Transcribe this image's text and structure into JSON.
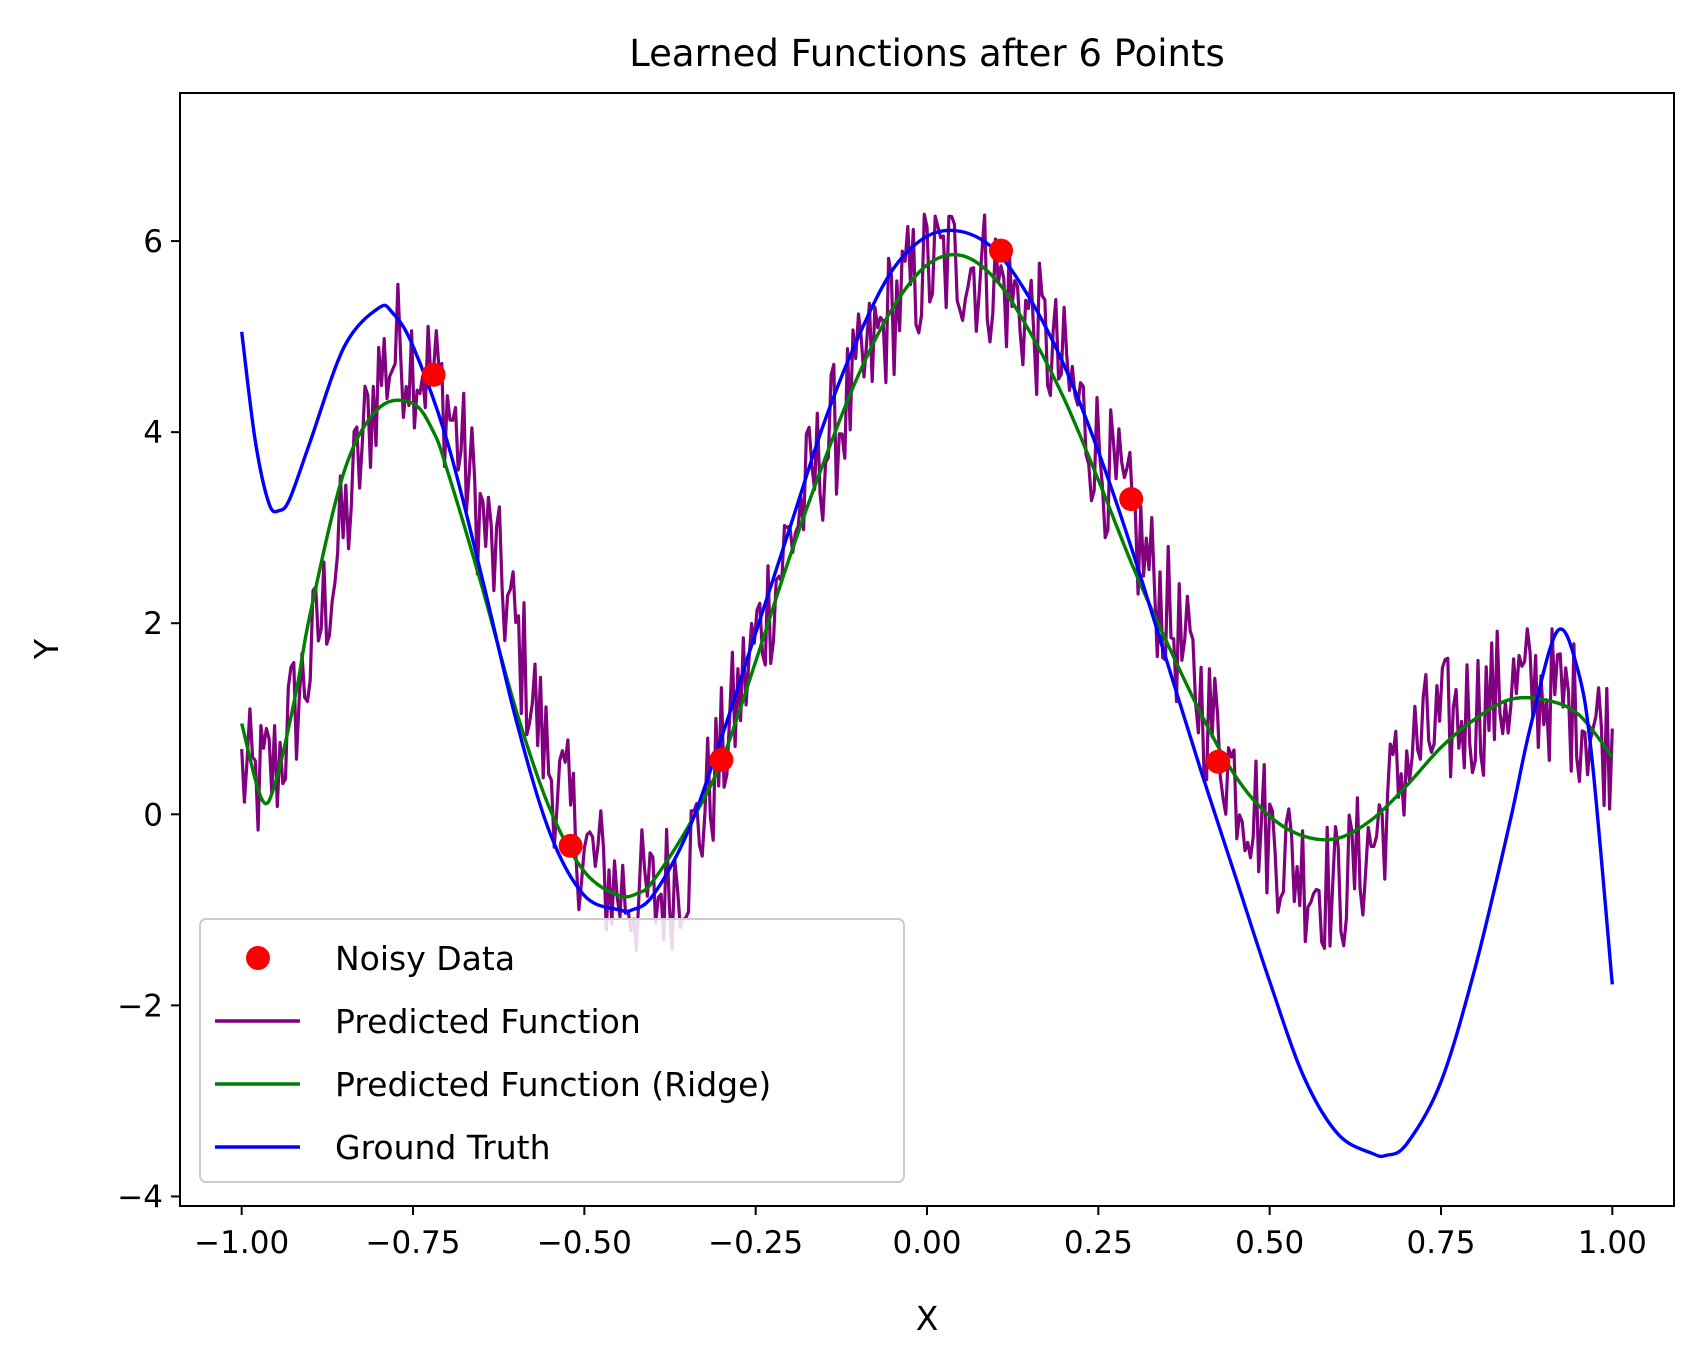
{
  "chart_data": {
    "type": "line",
    "title": "Learned Functions after 6 Points",
    "xlabel": "X",
    "ylabel": "Y",
    "xlim": [
      -1.09,
      1.09
    ],
    "ylim": [
      -4.1,
      7.55
    ],
    "x_ticks": [
      -1.0,
      -0.75,
      -0.5,
      -0.25,
      0.0,
      0.25,
      0.5,
      0.75,
      1.0
    ],
    "x_tick_labels": [
      "−1.00",
      "−0.75",
      "−0.50",
      "−0.25",
      "0.00",
      "0.25",
      "0.50",
      "0.75",
      "1.00"
    ],
    "y_ticks": [
      -4,
      -2,
      0,
      2,
      4,
      6
    ],
    "y_tick_labels": [
      "−4",
      "−2",
      "0",
      "2",
      "4",
      "6"
    ],
    "grid": false,
    "legend_position": "lower-left",
    "colors": {
      "noisy_data": "#ff0000",
      "predicted": "#800080",
      "ridge": "#008000",
      "ground_truth": "#0000ff"
    },
    "series": [
      {
        "name": "Noisy Data",
        "kind": "scatter",
        "x": [
          -0.72,
          -0.52,
          -0.3,
          0.108,
          0.298,
          0.425
        ],
        "y": [
          4.6,
          -0.33,
          0.57,
          5.9,
          3.3,
          0.55
        ]
      },
      {
        "name": "Predicted Function",
        "kind": "noisy-line",
        "x": [
          -1.0,
          -0.98,
          -0.95,
          -0.9,
          -0.85,
          -0.8,
          -0.77,
          -0.75,
          -0.72,
          -0.7,
          -0.65,
          -0.6,
          -0.55,
          -0.5,
          -0.45,
          -0.4,
          -0.35,
          -0.3,
          -0.25,
          -0.2,
          -0.15,
          -0.1,
          -0.05,
          0.0,
          0.05,
          0.1,
          0.15,
          0.2,
          0.25,
          0.3,
          0.35,
          0.4,
          0.45,
          0.5,
          0.55,
          0.6,
          0.65,
          0.7,
          0.75,
          0.8,
          0.85,
          0.9,
          0.95,
          1.0
        ],
        "y": [
          0.45,
          0.3,
          0.5,
          1.6,
          3.0,
          4.6,
          4.9,
          4.8,
          4.6,
          4.3,
          3.1,
          1.9,
          0.5,
          -0.4,
          -0.8,
          -0.9,
          -0.5,
          0.6,
          1.8,
          2.9,
          3.8,
          4.5,
          5.3,
          5.7,
          5.8,
          5.6,
          5.2,
          4.6,
          3.8,
          3.0,
          2.1,
          1.2,
          0.4,
          -0.2,
          -0.6,
          -0.8,
          -0.3,
          0.6,
          0.9,
          1.1,
          1.3,
          1.3,
          1.1,
          0.75
        ]
      },
      {
        "name": "Predicted Function (Ridge)",
        "kind": "line",
        "x": [
          -1.0,
          -0.97,
          -0.95,
          -0.92,
          -0.9,
          -0.85,
          -0.8,
          -0.75,
          -0.72,
          -0.7,
          -0.65,
          -0.6,
          -0.55,
          -0.5,
          -0.45,
          -0.42,
          -0.4,
          -0.35,
          -0.3,
          -0.25,
          -0.2,
          -0.15,
          -0.1,
          -0.05,
          0.0,
          0.05,
          0.1,
          0.15,
          0.2,
          0.25,
          0.3,
          0.35,
          0.4,
          0.45,
          0.5,
          0.55,
          0.6,
          0.65,
          0.7,
          0.75,
          0.8,
          0.85,
          0.9,
          0.95,
          1.0
        ],
        "y": [
          0.95,
          0.15,
          0.35,
          1.3,
          2.1,
          3.6,
          4.25,
          4.3,
          4.0,
          3.6,
          2.4,
          1.1,
          0.05,
          -0.6,
          -0.85,
          -0.82,
          -0.7,
          -0.15,
          0.55,
          1.6,
          2.7,
          3.7,
          4.6,
          5.3,
          5.75,
          5.85,
          5.6,
          5.05,
          4.35,
          3.5,
          2.6,
          1.8,
          1.05,
          0.4,
          -0.02,
          -0.23,
          -0.25,
          -0.05,
          0.3,
          0.7,
          1.0,
          1.2,
          1.2,
          1.05,
          0.6
        ]
      },
      {
        "name": "Ground Truth",
        "kind": "line",
        "x": [
          -1.0,
          -0.98,
          -0.96,
          -0.945,
          -0.93,
          -0.9,
          -0.85,
          -0.8,
          -0.78,
          -0.75,
          -0.7,
          -0.65,
          -0.6,
          -0.55,
          -0.5,
          -0.45,
          -0.43,
          -0.4,
          -0.35,
          -0.3,
          -0.25,
          -0.2,
          -0.15,
          -0.1,
          -0.05,
          0.0,
          0.05,
          0.1,
          0.15,
          0.2,
          0.25,
          0.3,
          0.35,
          0.4,
          0.45,
          0.5,
          0.55,
          0.6,
          0.65,
          0.67,
          0.7,
          0.75,
          0.8,
          0.85,
          0.88,
          0.92,
          0.95,
          0.97,
          1.0
        ],
        "y": [
          5.05,
          3.9,
          3.25,
          3.18,
          3.3,
          3.9,
          4.9,
          5.3,
          5.25,
          4.9,
          3.9,
          2.5,
          1.0,
          -0.2,
          -0.85,
          -1.0,
          -1.0,
          -0.85,
          -0.2,
          0.8,
          1.9,
          3.0,
          4.1,
          5.0,
          5.7,
          6.05,
          6.1,
          5.9,
          5.4,
          4.7,
          3.8,
          2.75,
          1.6,
          0.45,
          -0.65,
          -1.75,
          -2.75,
          -3.35,
          -3.55,
          -3.57,
          -3.45,
          -2.8,
          -1.6,
          -0.1,
          0.9,
          1.92,
          1.5,
          0.6,
          -1.78
        ]
      }
    ]
  }
}
